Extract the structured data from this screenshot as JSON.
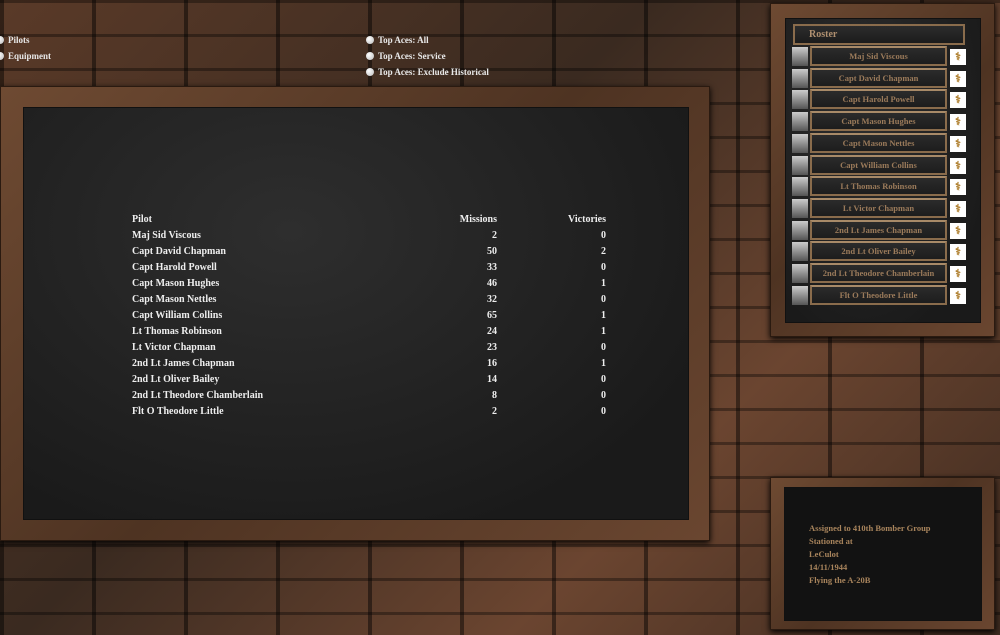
{
  "nav": {
    "pilots": "Pilots",
    "equipment": "Equipment"
  },
  "filters": [
    "Top Aces: All",
    "Top Aces: Service",
    "Top Aces: Exclude Historical"
  ],
  "table": {
    "headers": [
      "Pilot",
      "Missions",
      "Victories"
    ],
    "rows": [
      [
        "Maj Sid Viscous",
        "2",
        "0"
      ],
      [
        "Capt David Chapman",
        "50",
        "2"
      ],
      [
        "Capt Harold Powell",
        "33",
        "0"
      ],
      [
        "Capt Mason Hughes",
        "46",
        "1"
      ],
      [
        "Capt Mason Nettles",
        "32",
        "0"
      ],
      [
        "Capt William Collins",
        "65",
        "1"
      ],
      [
        "Lt Thomas Robinson",
        "24",
        "1"
      ],
      [
        "Lt Victor Chapman",
        "23",
        "0"
      ],
      [
        "2nd Lt James Chapman",
        "16",
        "1"
      ],
      [
        "2nd Lt Oliver Bailey",
        "14",
        "0"
      ],
      [
        "2nd Lt Theodore Chamberlain",
        "8",
        "0"
      ],
      [
        "Flt O Theodore Little",
        "2",
        "0"
      ]
    ]
  },
  "roster": {
    "title": "Roster",
    "items": [
      "Maj Sid Viscous",
      "Capt David Chapman",
      "Capt Harold Powell",
      "Capt Mason Hughes",
      "Capt Mason Nettles",
      "Capt William Collins",
      "Lt Thomas Robinson",
      "Lt Victor Chapman",
      "2nd Lt James Chapman",
      "2nd Lt Oliver Bailey",
      "2nd Lt Theodore Chamberlain",
      "Flt O Theodore Little"
    ]
  },
  "info": {
    "lines": [
      "Assigned to 410th Bomber Group",
      "Stationed at",
      "LeCulot",
      "14/11/1944",
      "Flying the A-20B"
    ]
  }
}
